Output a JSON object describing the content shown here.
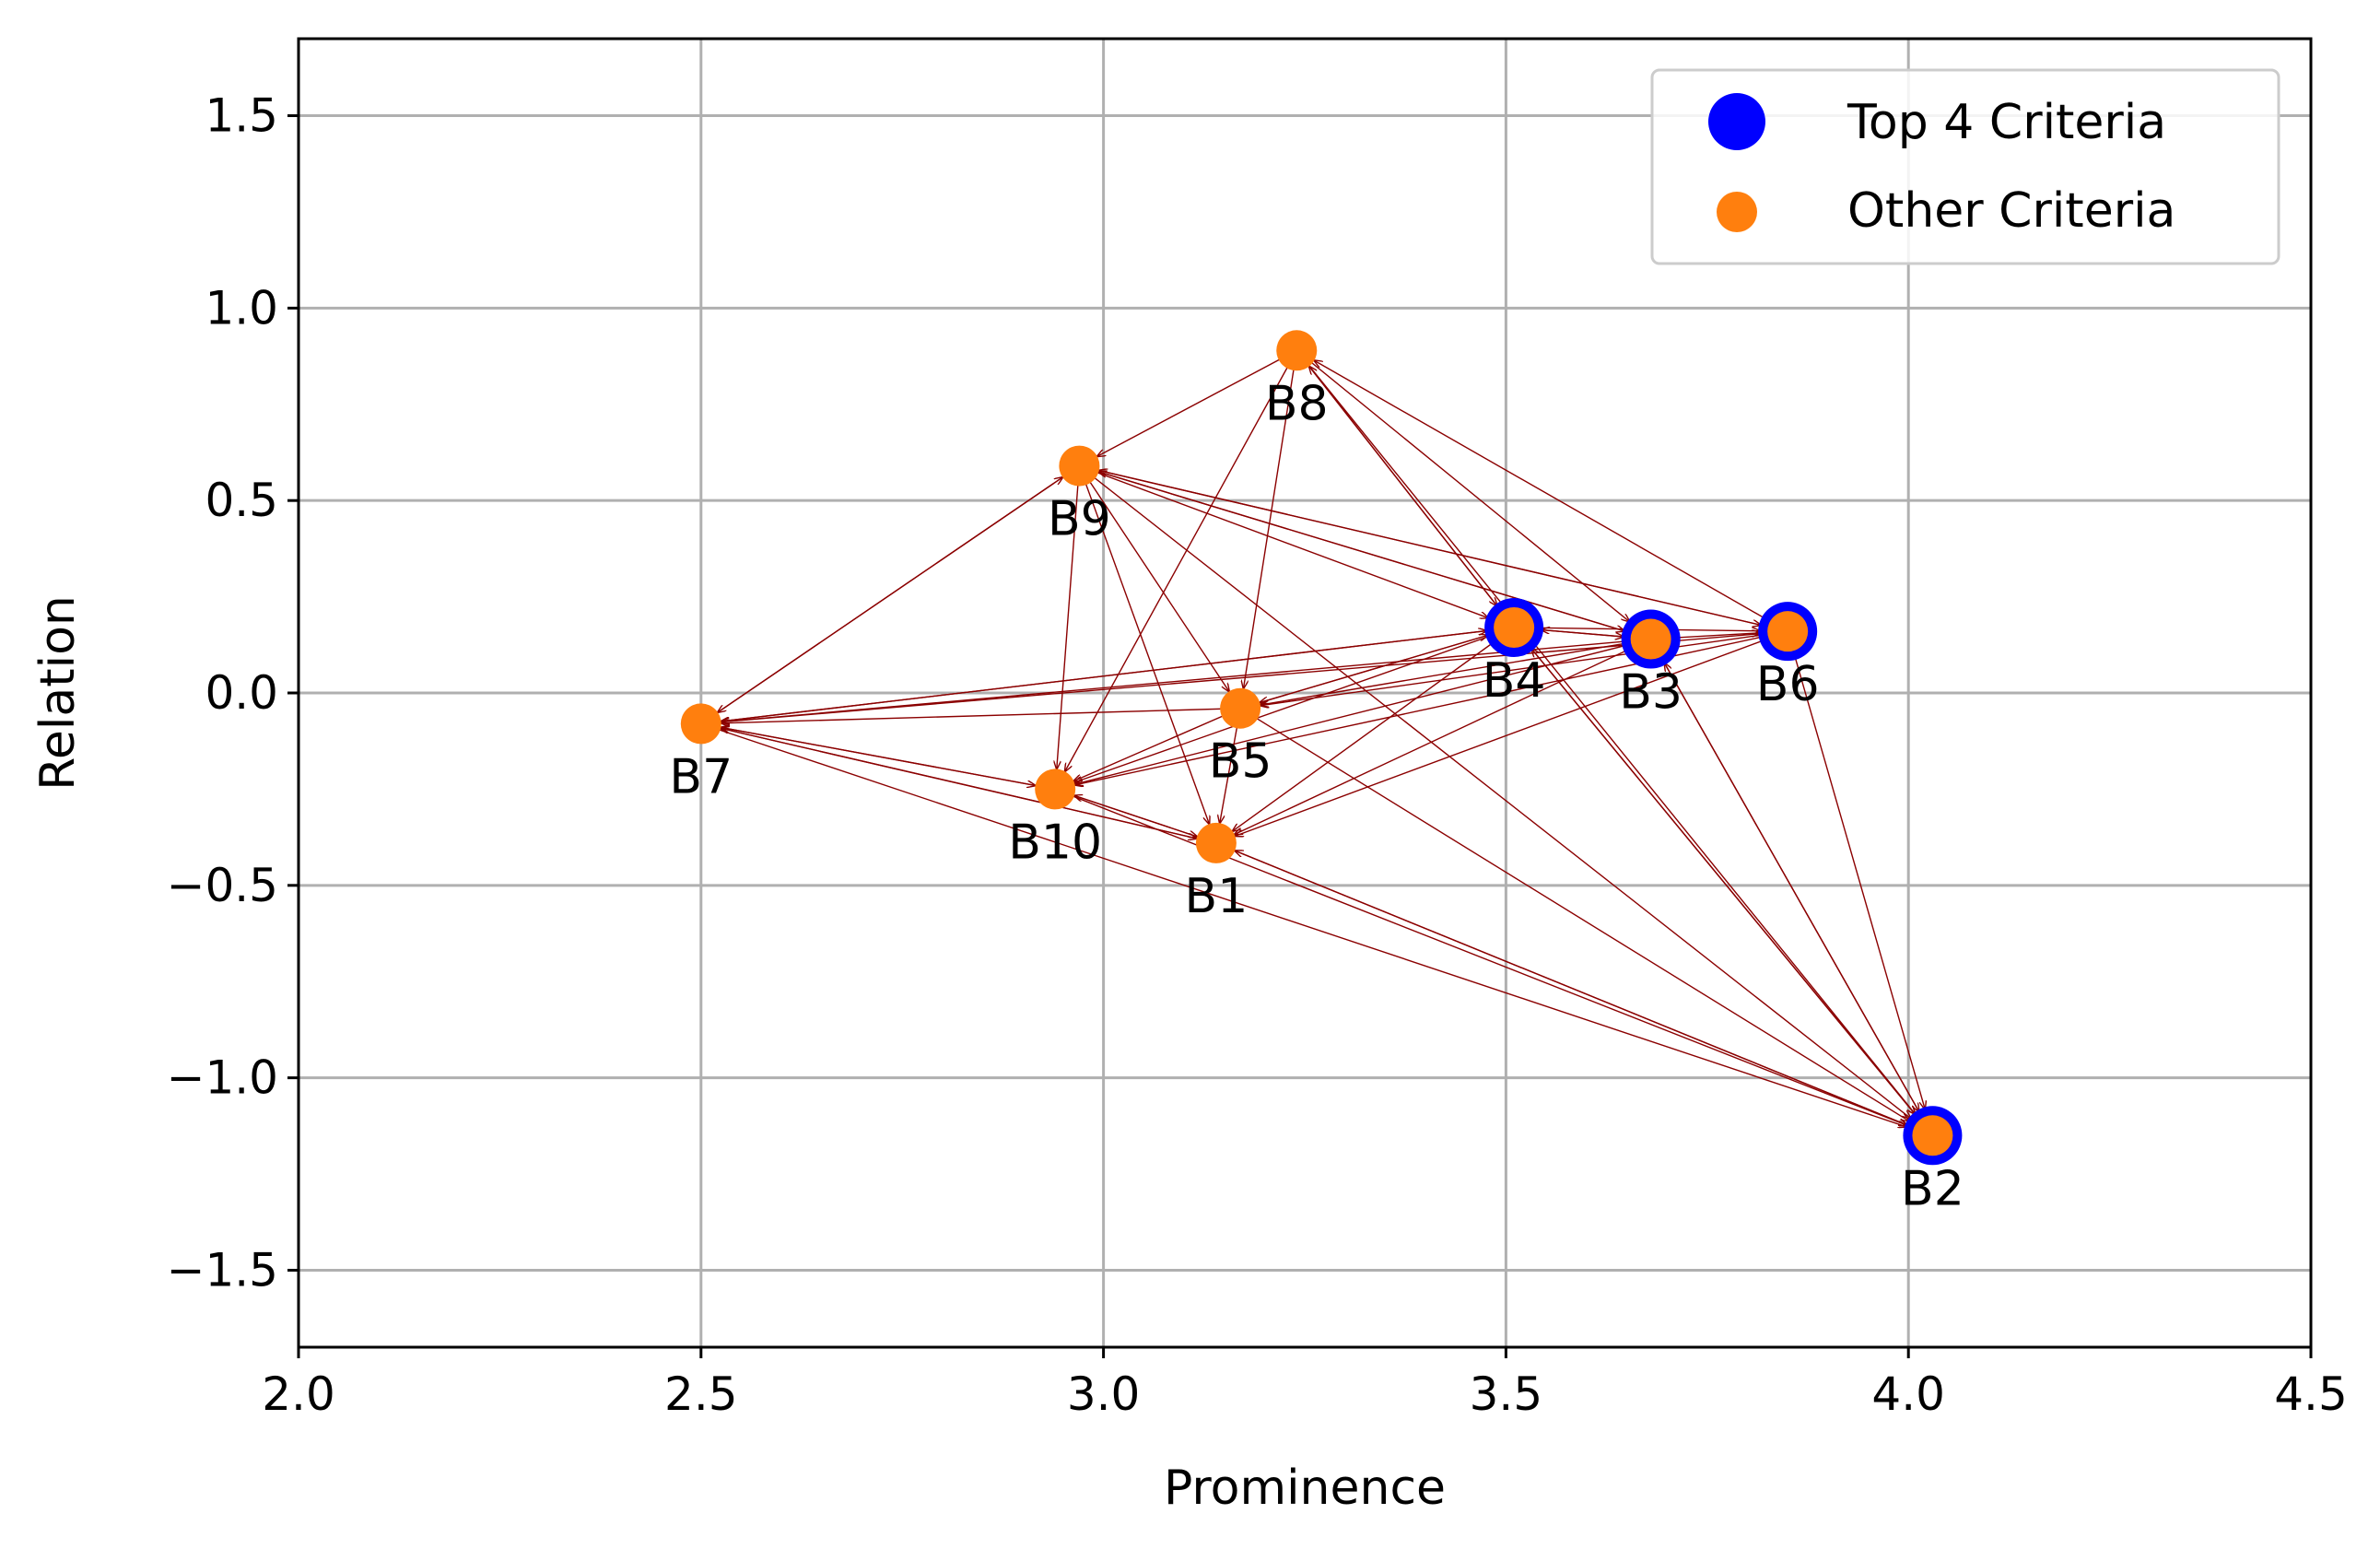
{
  "chart_data": {
    "type": "scatter",
    "title": "",
    "xlabel": "Prominence",
    "ylabel": "Relation",
    "xlim": [
      2.0,
      4.5
    ],
    "ylim": [
      -1.7,
      1.7
    ],
    "xticks": [
      2.0,
      2.5,
      3.0,
      3.5,
      4.0,
      4.5
    ],
    "xtick_labels": [
      "2.0",
      "2.5",
      "3.0",
      "3.5",
      "4.0",
      "4.5"
    ],
    "yticks": [
      1.5,
      1.0,
      0.5,
      0.0,
      -0.5,
      -1.0,
      -1.5
    ],
    "ytick_labels": [
      "1.5",
      "1.0",
      "0.5",
      "0.0",
      "−0.5",
      "−1.0",
      "−1.5"
    ],
    "grid": true,
    "legend_position": "top-right",
    "legend": [
      {
        "label": "Top 4 Criteria",
        "color": "#0000ff"
      },
      {
        "label": "Other Criteria",
        "color": "#ff7f0e"
      }
    ],
    "points": [
      {
        "name": "B1",
        "x": 3.14,
        "y": -0.39,
        "top": false
      },
      {
        "name": "B2",
        "x": 4.03,
        "y": -1.15,
        "top": true
      },
      {
        "name": "B3",
        "x": 3.68,
        "y": 0.14,
        "top": true
      },
      {
        "name": "B4",
        "x": 3.51,
        "y": 0.17,
        "top": true
      },
      {
        "name": "B5",
        "x": 3.17,
        "y": -0.04,
        "top": false
      },
      {
        "name": "B6",
        "x": 3.85,
        "y": 0.16,
        "top": true
      },
      {
        "name": "B7",
        "x": 2.5,
        "y": -0.08,
        "top": false
      },
      {
        "name": "B8",
        "x": 3.24,
        "y": 0.89,
        "top": false
      },
      {
        "name": "B9",
        "x": 2.97,
        "y": 0.59,
        "top": false
      },
      {
        "name": "B10",
        "x": 2.94,
        "y": -0.25,
        "top": false
      }
    ],
    "arrows": [
      [
        "B8",
        "B9"
      ],
      [
        "B8",
        "B5"
      ],
      [
        "B8",
        "B10"
      ],
      [
        "B8",
        "B4"
      ],
      [
        "B8",
        "B3"
      ],
      [
        "B8",
        "B2"
      ],
      [
        "B9",
        "B7"
      ],
      [
        "B9",
        "B10"
      ],
      [
        "B9",
        "B5"
      ],
      [
        "B9",
        "B1"
      ],
      [
        "B9",
        "B4"
      ],
      [
        "B9",
        "B3"
      ],
      [
        "B9",
        "B6"
      ],
      [
        "B9",
        "B2"
      ],
      [
        "B4",
        "B8"
      ],
      [
        "B4",
        "B5"
      ],
      [
        "B4",
        "B1"
      ],
      [
        "B4",
        "B10"
      ],
      [
        "B4",
        "B7"
      ],
      [
        "B4",
        "B3"
      ],
      [
        "B4",
        "B6"
      ],
      [
        "B4",
        "B2"
      ],
      [
        "B3",
        "B5"
      ],
      [
        "B3",
        "B1"
      ],
      [
        "B3",
        "B10"
      ],
      [
        "B3",
        "B7"
      ],
      [
        "B3",
        "B6"
      ],
      [
        "B3",
        "B2"
      ],
      [
        "B3",
        "B9"
      ],
      [
        "B3",
        "B4"
      ],
      [
        "B6",
        "B8"
      ],
      [
        "B6",
        "B5"
      ],
      [
        "B6",
        "B10"
      ],
      [
        "B6",
        "B1"
      ],
      [
        "B6",
        "B7"
      ],
      [
        "B6",
        "B2"
      ],
      [
        "B6",
        "B9"
      ],
      [
        "B7",
        "B10"
      ],
      [
        "B7",
        "B1"
      ],
      [
        "B7",
        "B2"
      ],
      [
        "B7",
        "B4"
      ],
      [
        "B7",
        "B9"
      ],
      [
        "B5",
        "B1"
      ],
      [
        "B5",
        "B10"
      ],
      [
        "B5",
        "B7"
      ],
      [
        "B5",
        "B2"
      ],
      [
        "B5",
        "B4"
      ],
      [
        "B10",
        "B1"
      ],
      [
        "B10",
        "B7"
      ],
      [
        "B10",
        "B2"
      ],
      [
        "B1",
        "B2"
      ],
      [
        "B1",
        "B10"
      ],
      [
        "B1",
        "B7"
      ],
      [
        "B2",
        "B1"
      ],
      [
        "B2",
        "B4"
      ],
      [
        "B2",
        "B3"
      ]
    ],
    "colors": {
      "top_ring": "#0000ff",
      "point_fill": "#ff7f0e",
      "arrow": "#8b0000",
      "grid": "#b0b0b0"
    }
  }
}
